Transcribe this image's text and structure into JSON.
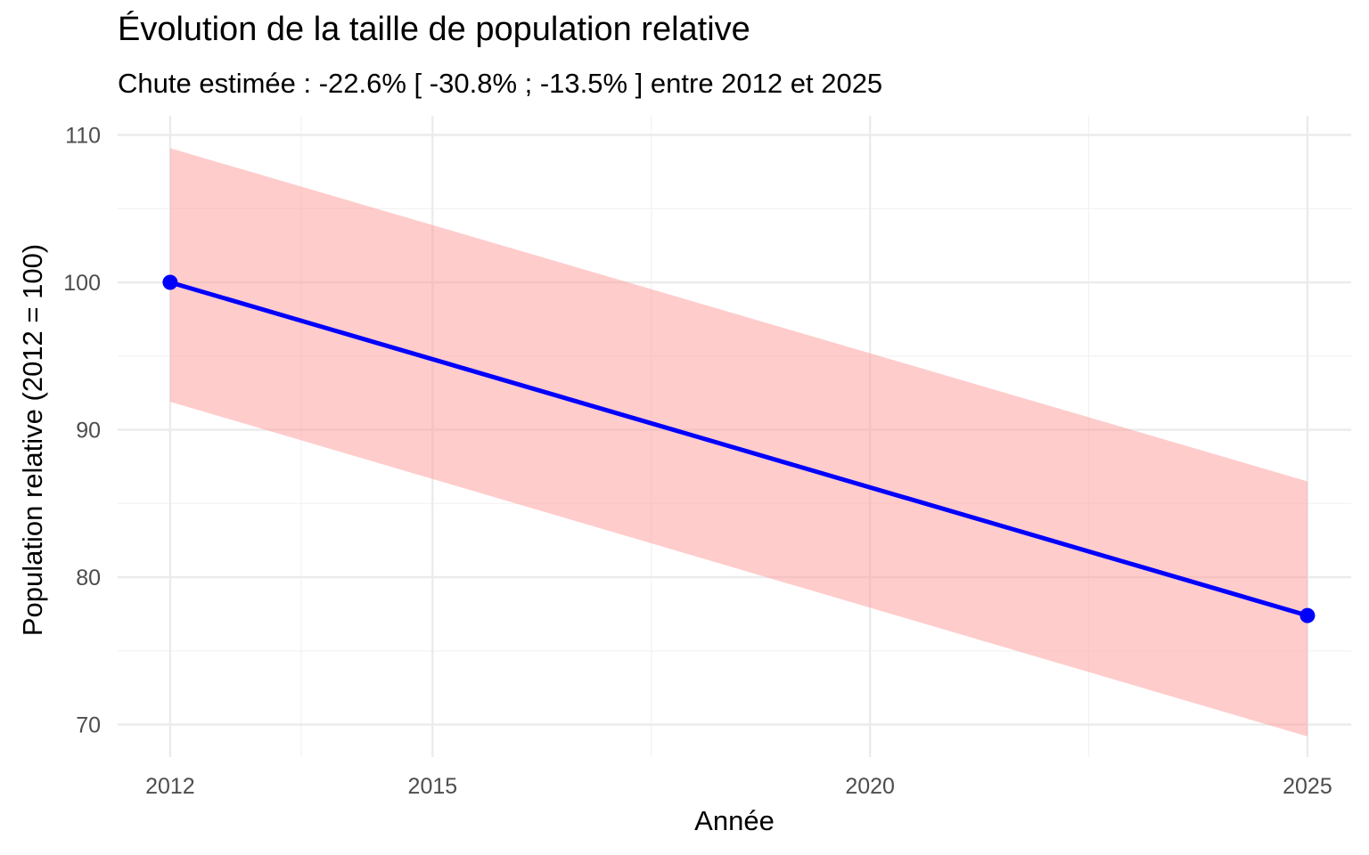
{
  "chart_data": {
    "type": "line",
    "title": "Évolution de la taille de population relative",
    "subtitle": "Chute estimée : -22.6% [ -30.8% ; -13.5% ] entre 2012 et 2025",
    "xlabel": "Année",
    "ylabel": "Population relative (2012 = 100)",
    "x_ticks": [
      2012,
      2015,
      2020,
      2025
    ],
    "y_ticks": [
      70,
      80,
      90,
      100,
      110
    ],
    "xlim": [
      2011.4,
      2025.5
    ],
    "ylim": [
      67.8,
      111.3
    ],
    "grid": true,
    "legend": "none",
    "series": [
      {
        "x": [
          2012,
          2025
        ],
        "values": [
          100,
          77.4
        ],
        "lower": [
          91.9,
          69.2
        ],
        "upper": [
          109.1,
          86.5
        ],
        "line_color": "#0000ff",
        "ribbon_color": "#ff9a9a"
      }
    ]
  }
}
